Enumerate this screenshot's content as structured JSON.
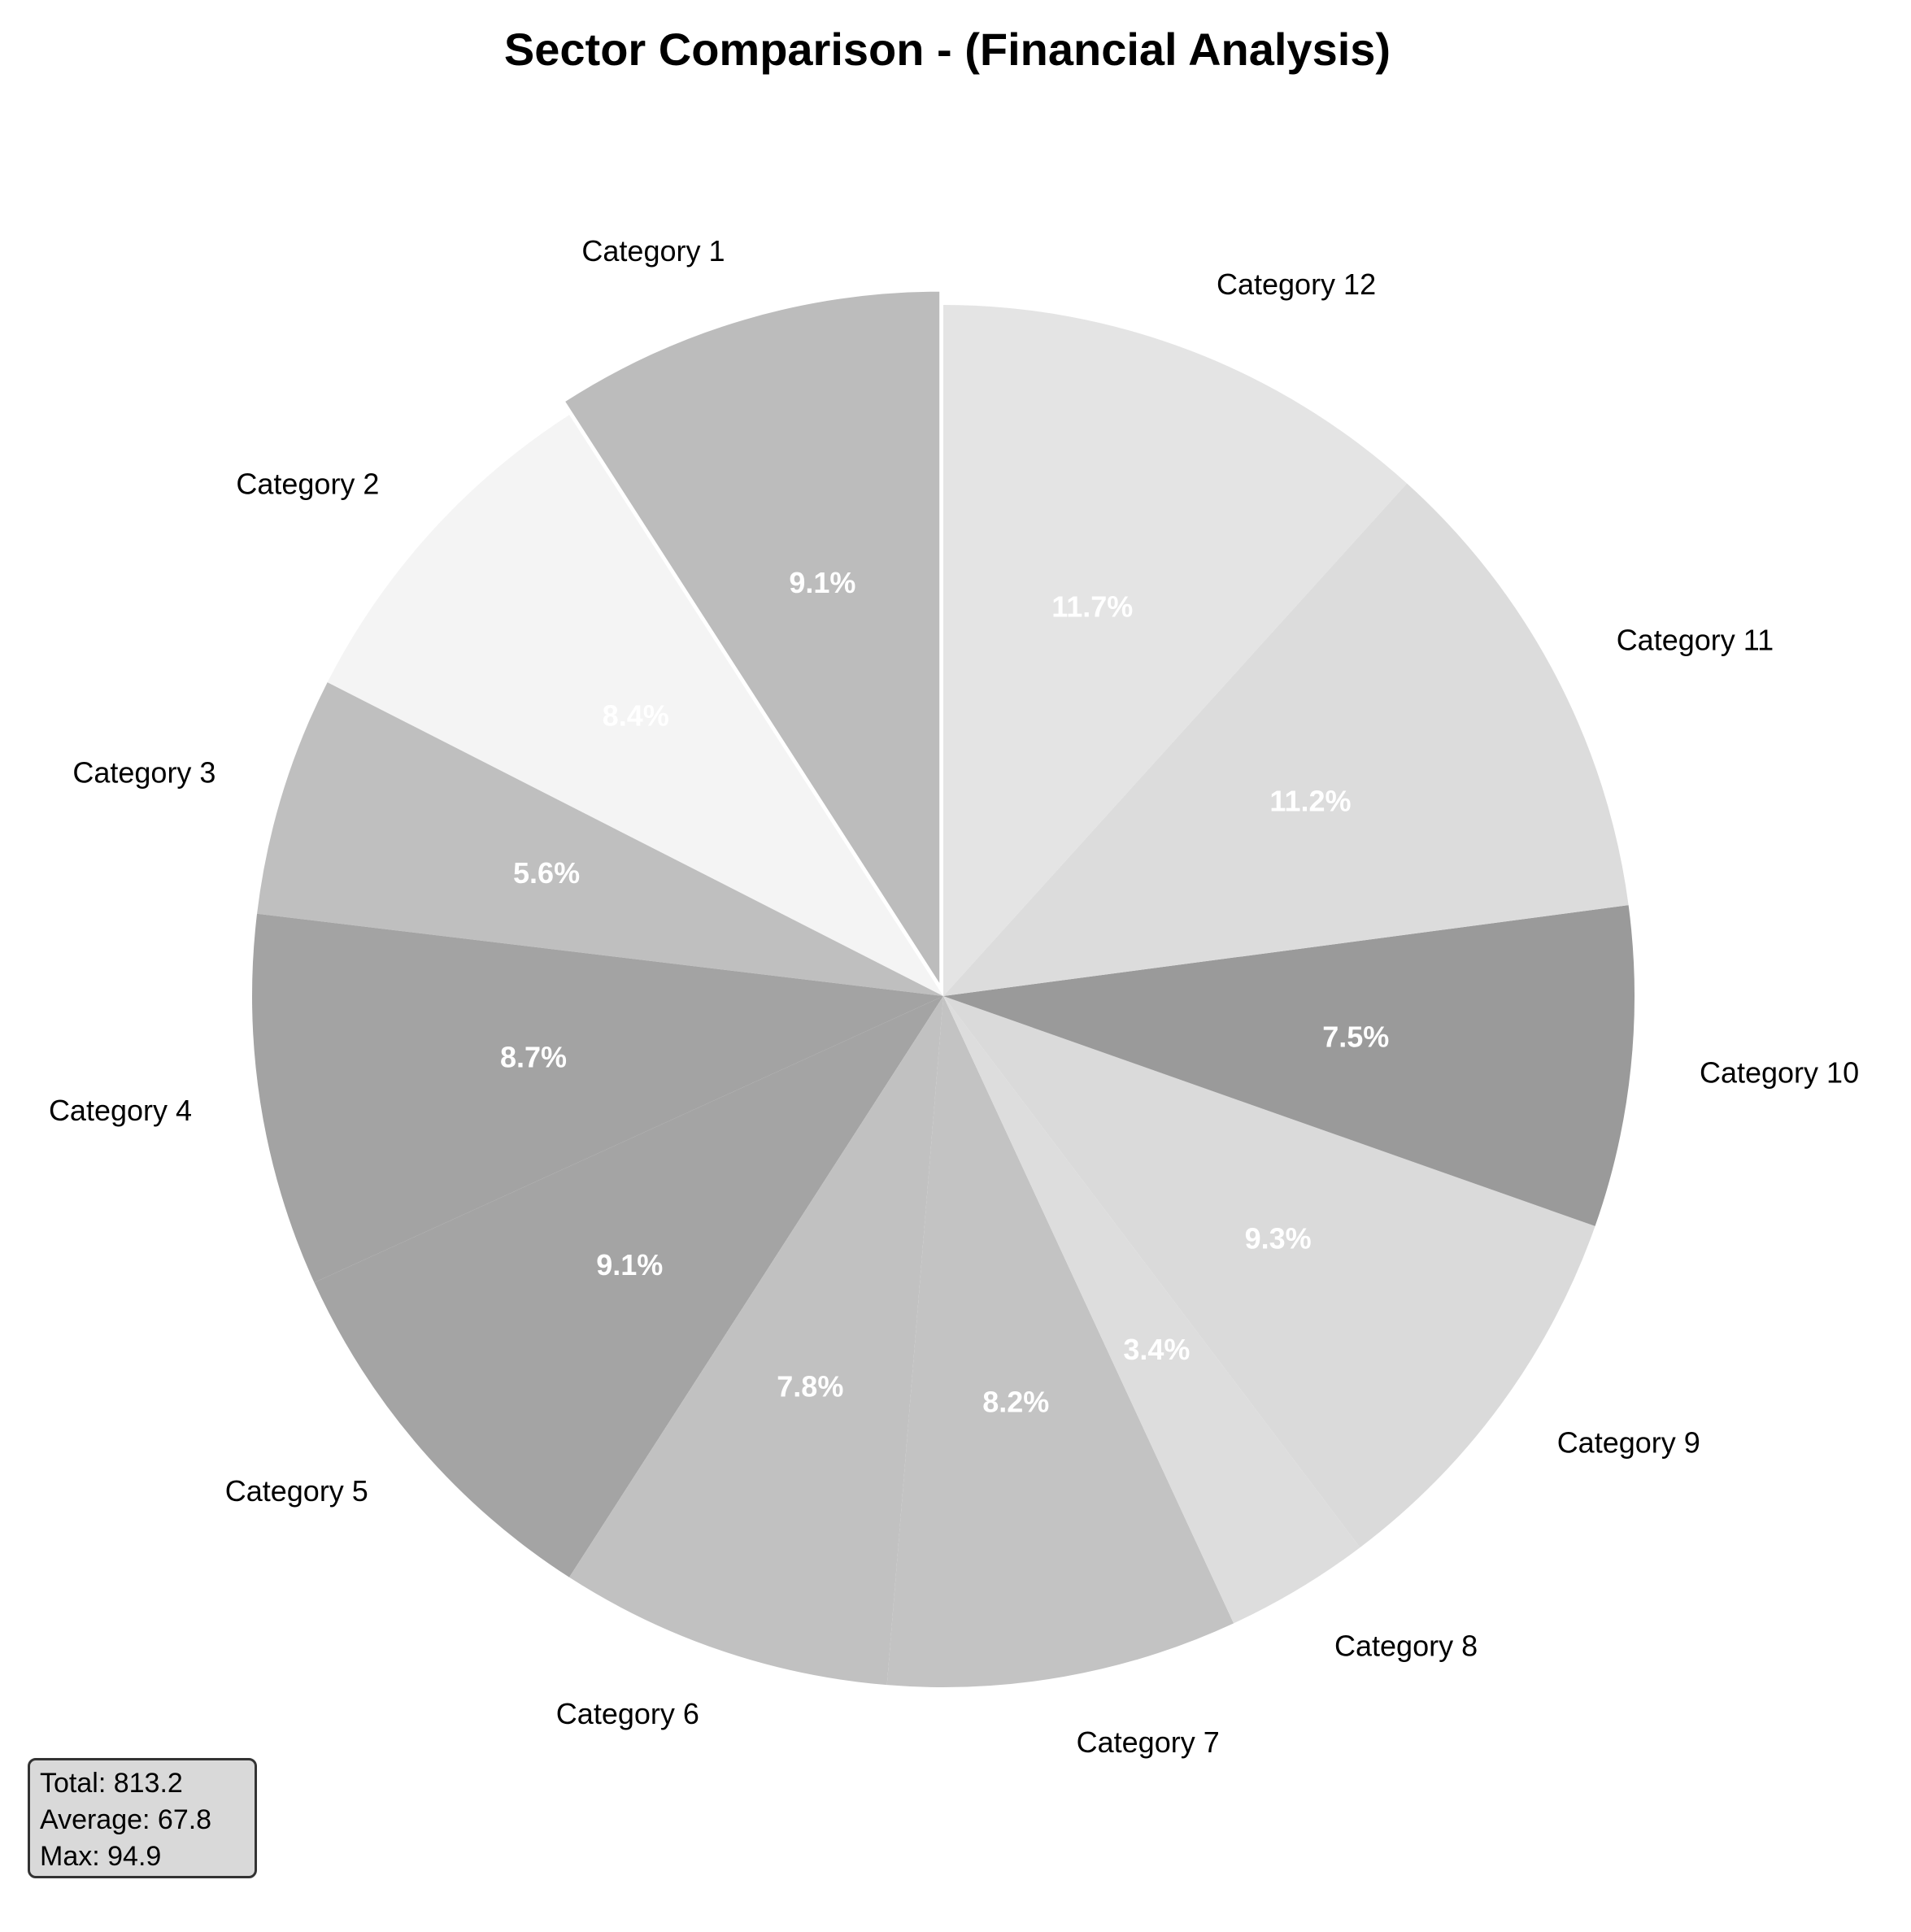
{
  "chart_data": {
    "type": "pie",
    "title": "Sector Comparison - (Financial Analysis)",
    "categories": [
      "Category 1",
      "Category 2",
      "Category 3",
      "Category 4",
      "Category 5",
      "Category 6",
      "Category 7",
      "Category 8",
      "Category 9",
      "Category 10",
      "Category 11",
      "Category 12"
    ],
    "values": [
      9.1,
      8.4,
      5.6,
      8.7,
      9.1,
      7.8,
      8.2,
      3.4,
      9.3,
      7.5,
      11.2,
      11.7
    ],
    "pct_labels": [
      "9.1%",
      "8.4%",
      "5.6%",
      "8.7%",
      "9.1%",
      "7.8%",
      "8.2%",
      "3.4%",
      "9.3%",
      "7.5%",
      "11.2%",
      "11.7%"
    ],
    "colors": [
      "#bcbcbc",
      "#f4f4f4",
      "#bfbfbf",
      "#a3a3a3",
      "#a4a4a4",
      "#c1c1c1",
      "#c3c3c3",
      "#dddddd",
      "#dadada",
      "#9a9a9a",
      "#dcdcdc",
      "#e4e4e4"
    ],
    "start_angle": 90,
    "direction": "counterclockwise",
    "exploded": [
      "Category 1"
    ],
    "stats": {
      "total": "Total: 813.2",
      "average": "Average: 67.8",
      "max": "Max: 94.9"
    }
  }
}
